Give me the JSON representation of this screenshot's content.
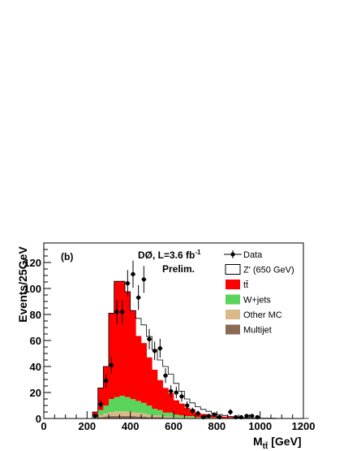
{
  "chart_data": {
    "type": "bar",
    "stacked": true,
    "panel_label": "(b)",
    "experiment": "DØ,  L=3.6 fb",
    "lumi_exponent": "-1",
    "status": "Prelim.",
    "ylabel": "Events/25GeV",
    "xlabel_main": "M",
    "xlabel_sub": "tt̄",
    "xlabel_unit": " [GeV]",
    "xlim": [
      0,
      1200
    ],
    "ylim": [
      0,
      135
    ],
    "x_ticks": [
      0,
      200,
      400,
      600,
      800,
      1000,
      1200
    ],
    "y_ticks": [
      0,
      20,
      40,
      60,
      80,
      100,
      120
    ],
    "bin_width": 25,
    "bin_edges_start": 225,
    "legend": [
      {
        "label": "Data",
        "kind": "data"
      },
      {
        "label": "Z' (650 GeV)",
        "kind": "outline"
      },
      {
        "label": "tt̄",
        "kind": "fill",
        "color": "#ff0000"
      },
      {
        "label": "W+jets",
        "kind": "fill",
        "color": "#5bd45b"
      },
      {
        "label": "Other MC",
        "kind": "fill",
        "color": "#d9b98a"
      },
      {
        "label": "Multijet",
        "kind": "fill",
        "color": "#8b6a55"
      }
    ],
    "series": [
      {
        "name": "Multijet",
        "color": "#8b6a55",
        "values": [
          0.5,
          1,
          1.5,
          2,
          2,
          2,
          2,
          2,
          1.5,
          1.5,
          1,
          1,
          1,
          0.5,
          0.5,
          0.5,
          0.5,
          0.3,
          0.3,
          0.3,
          0.2,
          0.2,
          0.2,
          0.1,
          0.1,
          0.1,
          0.1,
          0.1,
          0,
          0,
          0,
          0,
          0,
          0,
          0,
          0,
          0,
          0,
          0,
          0
        ]
      },
      {
        "name": "Other MC",
        "color": "#d9b98a",
        "values": [
          0.5,
          1.5,
          2.5,
          3,
          3.5,
          3.5,
          3.5,
          3,
          3,
          2.5,
          2,
          1.5,
          1.5,
          1,
          1,
          0.5,
          0.5,
          0.5,
          0.5,
          0.2,
          0.2,
          0.2,
          0.2,
          0.1,
          0.1,
          0.1,
          0.1,
          0.1,
          0,
          0,
          0,
          0,
          0,
          0,
          0,
          0,
          0,
          0,
          0,
          0
        ]
      },
      {
        "name": "W+jets",
        "color": "#5bd45b",
        "values": [
          1,
          4,
          6,
          10,
          11,
          12,
          11,
          10,
          9,
          8,
          7,
          5,
          4,
          3,
          3,
          2,
          1.5,
          1,
          1,
          0.5,
          0.5,
          0.5,
          0.3,
          0.3,
          0.2,
          0.2,
          0.1,
          0.1,
          0.1,
          0,
          0,
          0,
          0,
          0,
          0,
          0,
          0,
          0,
          0,
          0
        ]
      },
      {
        "name": "tt̄",
        "color": "#ff0000",
        "values": [
          3,
          17,
          30,
          66,
          89,
          88,
          81,
          68,
          50,
          46,
          37,
          30,
          23,
          19,
          15,
          11,
          9,
          6.5,
          5,
          3,
          2.6,
          2,
          1.5,
          1.2,
          1,
          0.8,
          0.6,
          0.5,
          0.4,
          0.3,
          0.3,
          0.2,
          0.2,
          0.2,
          0.1,
          0.1,
          0.1,
          0.1,
          0.1,
          0.1
        ]
      }
    ],
    "zprime_total": [
      5,
      23.5,
      40,
      81,
      105.5,
      105.5,
      97.5,
      83,
      77,
      72,
      63,
      53,
      45,
      40,
      34,
      27,
      21,
      15,
      12,
      9,
      7,
      5.5,
      4,
      3,
      2.3,
      1.5,
      1,
      0.6,
      0.5,
      0.3,
      0.3,
      0.2,
      0.2,
      0.2,
      0.1,
      0.1,
      0.1,
      0.1,
      0.1,
      0.1
    ],
    "data_points": [
      {
        "x": 237.5,
        "y": 2,
        "err": 1.4
      },
      {
        "x": 262.5,
        "y": 11,
        "err": 3.3
      },
      {
        "x": 287.5,
        "y": 29,
        "err": 5.4
      },
      {
        "x": 312.5,
        "y": 41,
        "err": 6.4
      },
      {
        "x": 337.5,
        "y": 82,
        "err": 9.1
      },
      {
        "x": 362.5,
        "y": 82,
        "err": 9.1
      },
      {
        "x": 387.5,
        "y": 104,
        "err": 10.2
      },
      {
        "x": 412.5,
        "y": 111,
        "err": 10.5
      },
      {
        "x": 437.5,
        "y": 93,
        "err": 9.6
      },
      {
        "x": 462.5,
        "y": 107,
        "err": 10.3
      },
      {
        "x": 487.5,
        "y": 61,
        "err": 7.8
      },
      {
        "x": 512.5,
        "y": 52,
        "err": 7.2
      },
      {
        "x": 537.5,
        "y": 54,
        "err": 7.3
      },
      {
        "x": 562.5,
        "y": 33,
        "err": 5.7
      },
      {
        "x": 587.5,
        "y": 21,
        "err": 4.6
      },
      {
        "x": 612.5,
        "y": 20,
        "err": 4.5
      },
      {
        "x": 637.5,
        "y": 17,
        "err": 4.1
      },
      {
        "x": 662.5,
        "y": 10,
        "err": 3.2
      },
      {
        "x": 687.5,
        "y": 6,
        "err": 2.4
      },
      {
        "x": 712.5,
        "y": 4,
        "err": 2
      },
      {
        "x": 737.5,
        "y": 1,
        "err": 1
      },
      {
        "x": 762.5,
        "y": 2,
        "err": 1.4
      },
      {
        "x": 787.5,
        "y": 3,
        "err": 1.7
      },
      {
        "x": 812.5,
        "y": 1,
        "err": 1
      },
      {
        "x": 862.5,
        "y": 5,
        "err": 2.2
      },
      {
        "x": 887.5,
        "y": 1,
        "err": 1
      },
      {
        "x": 912.5,
        "y": 1,
        "err": 1
      },
      {
        "x": 937.5,
        "y": 2,
        "err": 1.4
      },
      {
        "x": 962.5,
        "y": 2,
        "err": 1.4
      },
      {
        "x": 987.5,
        "y": 1,
        "err": 1
      }
    ]
  }
}
